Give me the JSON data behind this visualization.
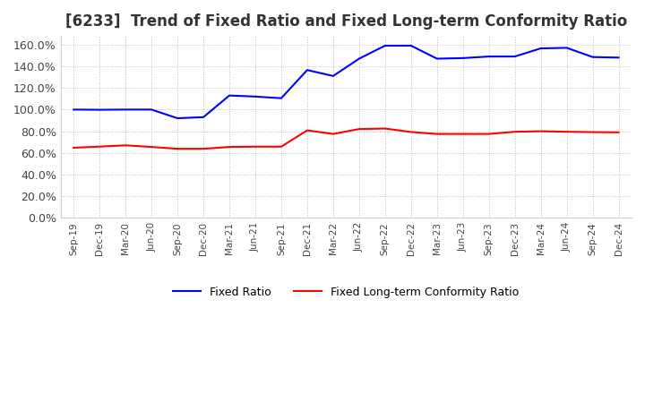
{
  "title": "[6233]  Trend of Fixed Ratio and Fixed Long-term Conformity Ratio",
  "title_fontsize": 12,
  "ylim": [
    0.0,
    1.68
  ],
  "yticks": [
    0.0,
    0.2,
    0.4,
    0.6,
    0.8,
    1.0,
    1.2,
    1.4,
    1.6
  ],
  "ytick_labels": [
    "0.0%",
    "20.0%",
    "40.0%",
    "60.0%",
    "80.0%",
    "100.0%",
    "120.0%",
    "140.0%",
    "160.0%"
  ],
  "x_labels": [
    "Sep-19",
    "Dec-19",
    "Mar-20",
    "Jun-20",
    "Sep-20",
    "Dec-20",
    "Mar-21",
    "Jun-21",
    "Sep-21",
    "Dec-21",
    "Mar-22",
    "Jun-22",
    "Sep-22",
    "Dec-22",
    "Mar-23",
    "Jun-23",
    "Sep-23",
    "Dec-23",
    "Mar-24",
    "Jun-24",
    "Sep-24",
    "Dec-24"
  ],
  "fixed_ratio": [
    1.0,
    0.998,
    1.0,
    1.0,
    0.92,
    0.93,
    1.13,
    1.12,
    1.105,
    1.365,
    1.31,
    1.47,
    1.59,
    1.59,
    1.47,
    1.475,
    1.49,
    1.49,
    1.565,
    1.57,
    1.485,
    1.48
  ],
  "fixed_lt_ratio": [
    0.648,
    0.658,
    0.67,
    0.655,
    0.638,
    0.638,
    0.655,
    0.658,
    0.658,
    0.808,
    0.775,
    0.82,
    0.825,
    0.793,
    0.775,
    0.775,
    0.775,
    0.795,
    0.8,
    0.795,
    0.792,
    0.79
  ],
  "line_color_fixed": "#0000FF",
  "line_color_lt": "#FF0000",
  "legend_fixed": "Fixed Ratio",
  "legend_lt": "Fixed Long-term Conformity Ratio",
  "bg_color": "#ffffff",
  "grid_color": "#bbbbbb",
  "line_width": 1.5
}
